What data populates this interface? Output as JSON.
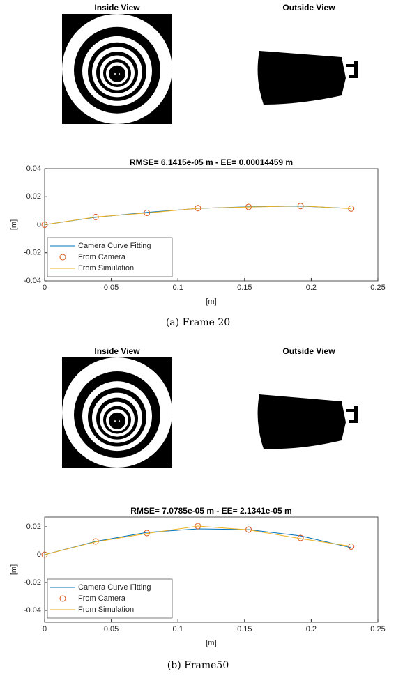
{
  "panels": [
    {
      "inside_title": "Inside View",
      "outside_title": "Outside View",
      "caption": "(a) Frame 20"
    },
    {
      "inside_title": "Inside View",
      "outside_title": "Outside View",
      "caption": "(b) Frame50"
    }
  ],
  "chart_data": [
    {
      "type": "line",
      "title": "RMSE= 6.1415e-05 m - EE= 0.00014459 m",
      "x": [
        0,
        0.0383,
        0.0767,
        0.115,
        0.153,
        0.192,
        0.23
      ],
      "xlim": [
        0,
        0.25
      ],
      "xticks": [
        0,
        0.05,
        0.1,
        0.15,
        0.2,
        0.25
      ],
      "ylim": [
        -0.04,
        0.04
      ],
      "yticks": [
        -0.04,
        -0.02,
        0,
        0.02,
        0.04
      ],
      "xlabel": "[m]",
      "ylabel": "[m]",
      "legend": "lower left",
      "series": [
        {
          "name": "Camera Curve Fitting",
          "color": "#0072bd",
          "style": "line",
          "values": [
            0,
            0.0053,
            0.0088,
            0.0116,
            0.0128,
            0.0132,
            0.0116
          ]
        },
        {
          "name": "From Camera",
          "color": "#d95319",
          "style": "marker",
          "values": [
            0,
            0.0055,
            0.0085,
            0.0118,
            0.0127,
            0.0133,
            0.0115
          ]
        },
        {
          "name": "From Simulation",
          "color": "#edb120",
          "style": "line",
          "values": [
            0,
            0.0055,
            0.0084,
            0.0117,
            0.0126,
            0.0134,
            0.0114
          ]
        }
      ]
    },
    {
      "type": "line",
      "title": "RMSE= 7.0785e-05 m - EE= 2.1341e-05 m",
      "x": [
        0,
        0.0383,
        0.0767,
        0.115,
        0.153,
        0.192,
        0.23
      ],
      "xlim": [
        0,
        0.25
      ],
      "xticks": [
        0,
        0.05,
        0.1,
        0.15,
        0.2,
        0.25
      ],
      "ylim": [
        -0.0485,
        0.027
      ],
      "yticks": [
        -0.04,
        -0.02,
        0,
        0.02
      ],
      "xlabel": "[m]",
      "ylabel": "[m]",
      "legend": "lower left",
      "series": [
        {
          "name": "Camera Curve Fitting",
          "color": "#0072bd",
          "style": "line",
          "values": [
            0,
            0.0095,
            0.016,
            0.0185,
            0.018,
            0.0135,
            0.005
          ]
        },
        {
          "name": "From Camera",
          "color": "#d95319",
          "style": "marker",
          "values": [
            0,
            0.0095,
            0.0155,
            0.0205,
            0.018,
            0.012,
            0.0058
          ]
        },
        {
          "name": "From Simulation",
          "color": "#edb120",
          "style": "line",
          "values": [
            0,
            0.0092,
            0.0152,
            0.0205,
            0.0178,
            0.0115,
            0.006
          ]
        }
      ]
    }
  ]
}
